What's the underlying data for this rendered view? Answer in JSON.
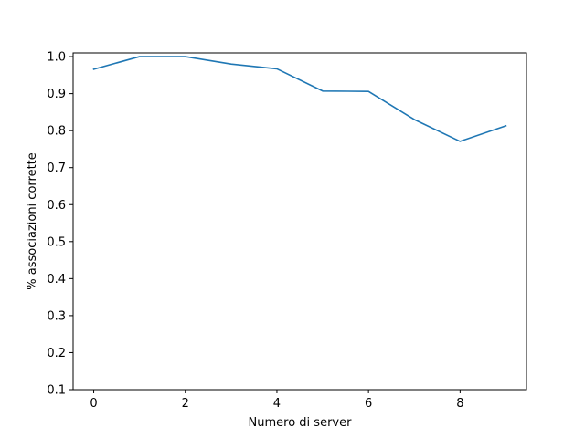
{
  "chart_data": {
    "type": "line",
    "title": "",
    "xlabel": "Numero di server",
    "ylabel": "% associazioni corrette",
    "xlim": [
      -0.45,
      9.45
    ],
    "ylim": [
      0.1,
      1.01
    ],
    "xticks": [
      0,
      2,
      4,
      6,
      8
    ],
    "xtick_labels": [
      "0",
      "2",
      "4",
      "6",
      "8"
    ],
    "yticks": [
      0.1,
      0.2,
      0.3,
      0.4,
      0.5,
      0.6,
      0.7,
      0.8,
      0.9,
      1.0
    ],
    "ytick_labels": [
      "0.1",
      "0.2",
      "0.3",
      "0.4",
      "0.5",
      "0.6",
      "0.7",
      "0.8",
      "0.9",
      "1.0"
    ],
    "grid": false,
    "series": [
      {
        "color": "#1f77b4",
        "x": [
          0,
          1,
          2,
          3,
          4,
          5,
          6,
          7,
          8,
          9
        ],
        "y": [
          0.966,
          1.0,
          1.0,
          0.98,
          0.967,
          0.907,
          0.906,
          0.83,
          0.771,
          0.813
        ]
      }
    ]
  }
}
